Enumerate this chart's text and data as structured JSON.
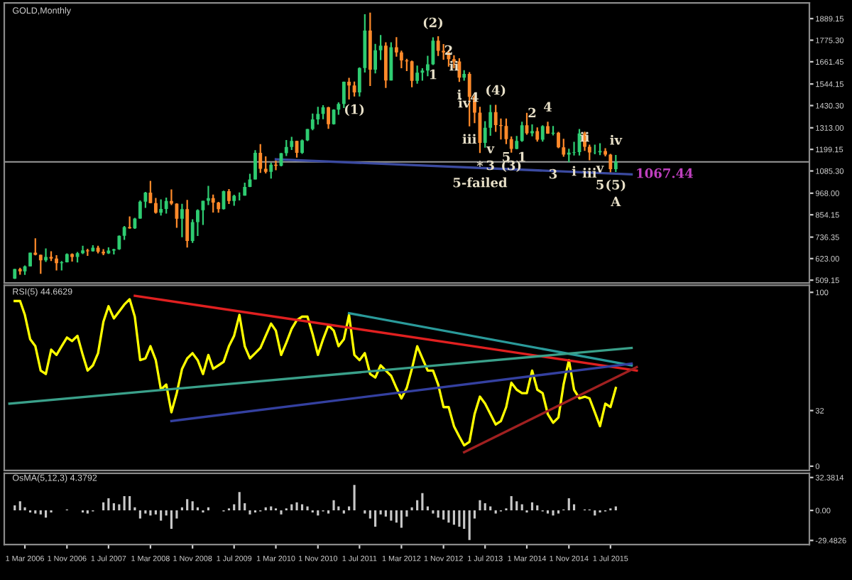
{
  "chart_data": [
    {
      "type": "candlestick",
      "title": "GOLD,Monthly",
      "x": [
        "2006-01",
        "2006-02",
        "2006-03",
        "2006-04",
        "2006-05",
        "2006-06",
        "2006-07",
        "2006-08",
        "2006-09",
        "2006-10",
        "2006-11",
        "2006-12",
        "2007-01",
        "2007-02",
        "2007-03",
        "2007-04",
        "2007-05",
        "2007-06",
        "2007-07",
        "2007-08",
        "2007-09",
        "2007-10",
        "2007-11",
        "2007-12",
        "2008-01",
        "2008-02",
        "2008-03",
        "2008-04",
        "2008-05",
        "2008-06",
        "2008-07",
        "2008-08",
        "2008-09",
        "2008-10",
        "2008-11",
        "2008-12",
        "2009-01",
        "2009-02",
        "2009-03",
        "2009-04",
        "2009-05",
        "2009-06",
        "2009-07",
        "2009-08",
        "2009-09",
        "2009-10",
        "2009-11",
        "2009-12",
        "2010-01",
        "2010-02",
        "2010-03",
        "2010-04",
        "2010-05",
        "2010-06",
        "2010-07",
        "2010-08",
        "2010-09",
        "2010-10",
        "2010-11",
        "2010-12",
        "2011-01",
        "2011-02",
        "2011-03",
        "2011-04",
        "2011-05",
        "2011-06",
        "2011-07",
        "2011-08",
        "2011-09",
        "2011-10",
        "2011-11",
        "2011-12",
        "2012-01",
        "2012-02",
        "2012-03",
        "2012-04",
        "2012-05",
        "2012-06",
        "2012-07",
        "2012-08",
        "2012-09",
        "2012-10",
        "2012-11",
        "2012-12",
        "2013-01",
        "2013-02",
        "2013-03",
        "2013-04",
        "2013-05",
        "2013-06",
        "2013-07",
        "2013-08",
        "2013-09",
        "2013-10",
        "2013-11",
        "2013-12",
        "2014-01",
        "2014-02",
        "2014-03",
        "2014-04",
        "2014-05",
        "2014-06",
        "2014-07",
        "2014-08",
        "2014-09",
        "2014-10",
        "2014-11",
        "2014-12",
        "2015-01",
        "2015-02",
        "2015-03",
        "2015-04",
        "2015-05",
        "2015-06",
        "2015-07",
        "2015-08"
      ],
      "ohlc": [
        [
          517,
          569,
          515,
          568
        ],
        [
          568,
          574,
          538,
          556
        ],
        [
          556,
          587,
          537,
          582
        ],
        [
          582,
          654,
          582,
          654
        ],
        [
          654,
          730,
          640,
          643
        ],
        [
          643,
          644,
          543,
          614
        ],
        [
          614,
          677,
          605,
          632
        ],
        [
          632,
          662,
          610,
          623
        ],
        [
          623,
          641,
          560,
          599
        ],
        [
          599,
          610,
          560,
          604
        ],
        [
          604,
          650,
          603,
          647
        ],
        [
          647,
          650,
          607,
          632
        ],
        [
          632,
          658,
          603,
          651
        ],
        [
          651,
          691,
          647,
          666
        ],
        [
          666,
          675,
          637,
          662
        ],
        [
          662,
          694,
          660,
          680
        ],
        [
          680,
          691,
          650,
          659
        ],
        [
          659,
          673,
          641,
          650
        ],
        [
          650,
          682,
          648,
          665
        ],
        [
          665,
          675,
          645,
          672
        ],
        [
          672,
          745,
          669,
          743
        ],
        [
          743,
          795,
          722,
          789
        ],
        [
          789,
          845,
          781,
          783
        ],
        [
          783,
          838,
          780,
          834
        ],
        [
          834,
          930,
          833,
          923
        ],
        [
          923,
          975,
          890,
          971
        ],
        [
          971,
          1033,
          915,
          916
        ],
        [
          916,
          943,
          860,
          865
        ],
        [
          865,
          935,
          850,
          885
        ],
        [
          885,
          945,
          860,
          927
        ],
        [
          927,
          988,
          905,
          913
        ],
        [
          913,
          915,
          785,
          833
        ],
        [
          833,
          912,
          736,
          884
        ],
        [
          884,
          933,
          681,
          716
        ],
        [
          716,
          830,
          706,
          815
        ],
        [
          815,
          883,
          742,
          878
        ],
        [
          878,
          928,
          800,
          928
        ],
        [
          928,
          1007,
          905,
          942
        ],
        [
          942,
          961,
          866,
          919
        ],
        [
          919,
          922,
          865,
          884
        ],
        [
          884,
          981,
          882,
          979
        ],
        [
          979,
          990,
          911,
          927
        ],
        [
          927,
          960,
          902,
          954
        ],
        [
          954,
          972,
          930,
          955
        ],
        [
          955,
          1024,
          955,
          1001
        ],
        [
          1001,
          1070,
          1000,
          1040
        ],
        [
          1040,
          1195,
          1040,
          1181
        ],
        [
          1181,
          1227,
          1075,
          1097
        ],
        [
          1097,
          1162,
          1072,
          1081
        ],
        [
          1081,
          1129,
          1045,
          1118
        ],
        [
          1118,
          1141,
          1089,
          1113
        ],
        [
          1113,
          1180,
          1110,
          1179
        ],
        [
          1179,
          1249,
          1164,
          1212
        ],
        [
          1212,
          1265,
          1196,
          1244
        ],
        [
          1244,
          1245,
          1156,
          1181
        ],
        [
          1181,
          1251,
          1175,
          1247
        ],
        [
          1247,
          1307,
          1243,
          1307
        ],
        [
          1307,
          1388,
          1300,
          1357
        ],
        [
          1357,
          1424,
          1330,
          1386
        ],
        [
          1386,
          1432,
          1358,
          1421
        ],
        [
          1421,
          1424,
          1308,
          1332
        ],
        [
          1332,
          1411,
          1330,
          1409
        ],
        [
          1409,
          1447,
          1382,
          1439
        ],
        [
          1439,
          1557,
          1417,
          1556
        ],
        [
          1556,
          1577,
          1462,
          1536
        ],
        [
          1536,
          1557,
          1478,
          1500
        ],
        [
          1500,
          1632,
          1478,
          1628
        ],
        [
          1628,
          1912,
          1605,
          1826
        ],
        [
          1826,
          1921,
          1534,
          1620
        ],
        [
          1620,
          1756,
          1600,
          1722
        ],
        [
          1722,
          1803,
          1670,
          1746
        ],
        [
          1746,
          1764,
          1523,
          1563
        ],
        [
          1563,
          1764,
          1563,
          1738
        ],
        [
          1738,
          1791,
          1688,
          1711
        ],
        [
          1711,
          1720,
          1627,
          1669
        ],
        [
          1669,
          1677,
          1612,
          1664
        ],
        [
          1664,
          1668,
          1527,
          1561
        ],
        [
          1561,
          1641,
          1546,
          1604
        ],
        [
          1604,
          1627,
          1562,
          1615
        ],
        [
          1615,
          1693,
          1585,
          1648
        ],
        [
          1648,
          1790,
          1644,
          1773
        ],
        [
          1773,
          1796,
          1692,
          1719
        ],
        [
          1719,
          1755,
          1672,
          1711
        ],
        [
          1711,
          1723,
          1636,
          1675
        ],
        [
          1675,
          1696,
          1626,
          1663
        ],
        [
          1663,
          1680,
          1555,
          1578
        ],
        [
          1578,
          1617,
          1562,
          1597
        ],
        [
          1597,
          1607,
          1321,
          1476
        ],
        [
          1476,
          1487,
          1338,
          1393
        ],
        [
          1393,
          1424,
          1180,
          1234
        ],
        [
          1234,
          1348,
          1208,
          1313
        ],
        [
          1313,
          1434,
          1271,
          1396
        ],
        [
          1396,
          1434,
          1292,
          1327
        ],
        [
          1327,
          1362,
          1251,
          1323
        ],
        [
          1323,
          1362,
          1227,
          1253
        ],
        [
          1253,
          1267,
          1182,
          1202
        ],
        [
          1202,
          1270,
          1200,
          1244
        ],
        [
          1244,
          1345,
          1239,
          1326
        ],
        [
          1326,
          1392,
          1277,
          1284
        ],
        [
          1284,
          1331,
          1268,
          1295
        ],
        [
          1295,
          1315,
          1240,
          1250
        ],
        [
          1250,
          1326,
          1240,
          1322
        ],
        [
          1322,
          1345,
          1281,
          1282
        ],
        [
          1282,
          1323,
          1273,
          1287
        ],
        [
          1287,
          1292,
          1205,
          1210
        ],
        [
          1210,
          1255,
          1160,
          1172
        ],
        [
          1172,
          1203,
          1131,
          1182
        ],
        [
          1182,
          1239,
          1167,
          1185
        ],
        [
          1185,
          1307,
          1167,
          1283
        ],
        [
          1283,
          1293,
          1191,
          1213
        ],
        [
          1213,
          1224,
          1142,
          1183
        ],
        [
          1183,
          1224,
          1174,
          1184
        ],
        [
          1184,
          1232,
          1169,
          1190
        ],
        [
          1190,
          1205,
          1162,
          1172
        ],
        [
          1172,
          1175,
          1077,
          1095
        ],
        [
          1095,
          1170,
          1080,
          1133
        ]
      ],
      "series": [
        {
          "type": "line",
          "x": [
            "2010-03",
            "2015-11"
          ],
          "values": [
            1147,
            1067.44
          ],
          "color": "#3b4aa0"
        }
      ],
      "ref_lines": [
        {
          "axis": "y",
          "value": 1133,
          "color": "#9a9a9a"
        }
      ],
      "xlim": [
        "2005-11",
        "2018-09"
      ],
      "ylim": [
        494,
        1972
      ],
      "yticks": [
        {
          "value": 1889.15,
          "label": "1889.15"
        },
        {
          "value": 1775.3,
          "label": "1775.30"
        },
        {
          "value": 1661.45,
          "label": "1661.45"
        },
        {
          "value": 1544.15,
          "label": "1544.15"
        },
        {
          "value": 1430.3,
          "label": "1430.30"
        },
        {
          "value": 1313,
          "label": "1313.00"
        },
        {
          "value": 1199.15,
          "label": "1199.15"
        },
        {
          "value": 1085.3,
          "label": "1085.30"
        },
        {
          "value": 968,
          "label": "968.00"
        },
        {
          "value": 854.15,
          "label": "854.15"
        },
        {
          "value": 736.35,
          "label": "736.35"
        },
        {
          "value": 623,
          "label": "623.00"
        },
        {
          "value": 509.15,
          "label": "509.15"
        }
      ],
      "tick_labels": "y",
      "annotations": [
        {
          "text": "(1)",
          "x": "2011-06",
          "y": 1478
        },
        {
          "text": "(2)",
          "x": "2012-09",
          "y": 1790
        },
        {
          "text": "5",
          "x": "2013-11",
          "y": 1227
        },
        {
          "text": "(3)",
          "x": "2013-12",
          "y": 1182
        },
        {
          "text": "(4)",
          "x": "2013-09",
          "y": 1434
        },
        {
          "text": "v",
          "x": "2015-05",
          "y": 1169
        },
        {
          "text": "5",
          "x": "2015-05",
          "y": 1169
        },
        {
          "text": "(5)",
          "x": "2015-08",
          "y": 1080
        },
        {
          "text": "A",
          "x": "2015-08",
          "y": 1080
        },
        {
          "text": "*",
          "x": "2013-06",
          "y": 1180
        },
        {
          "text": "5-failed",
          "x": "2013-06",
          "y": 1180
        },
        {
          "text": "2",
          "x": "2012-12",
          "y": 1717
        },
        {
          "text": "1",
          "x": "2012-09",
          "y": 1589
        },
        {
          "text": "ii",
          "x": "2013-01",
          "y": 1634
        },
        {
          "text": "i",
          "x": "2013-02",
          "y": 1555
        },
        {
          "text": "iv",
          "x": "2013-03",
          "y": 1439
        },
        {
          "text": "4",
          "x": "2013-05",
          "y": 1469
        },
        {
          "text": "iii",
          "x": "2013-04",
          "y": 1321
        },
        {
          "text": "v",
          "x": "2013-08",
          "y": 1271
        },
        {
          "text": "3",
          "x": "2013-08",
          "y": 1271
        },
        {
          "text": "1",
          "x": "2014-02",
          "y": 1154
        },
        {
          "text": "2",
          "x": "2014-04",
          "y": 1387
        },
        {
          "text": "3",
          "x": "2014-08",
          "y": 1064
        },
        {
          "text": "4",
          "x": "2014-07",
          "y": 1345
        },
        {
          "text": "i",
          "x": "2014-12",
          "y": 1079
        },
        {
          "text": "ii",
          "x": "2015-02",
          "y": 1259
        },
        {
          "text": "iii",
          "x": "2015-03",
          "y": 1142
        },
        {
          "text": "iv",
          "x": "2015-08",
          "y": 1170
        },
        {
          "text": "1067.44",
          "x": "2015-11",
          "y": 1067.44
        }
      ]
    },
    {
      "type": "line",
      "title": "RSI(5) 44.6629",
      "x": [
        "2006-01",
        "2006-02",
        "2006-03",
        "2006-04",
        "2006-05",
        "2006-06",
        "2006-07",
        "2006-08",
        "2006-09",
        "2006-10",
        "2006-11",
        "2006-12",
        "2007-01",
        "2007-02",
        "2007-03",
        "2007-04",
        "2007-05",
        "2007-06",
        "2007-07",
        "2007-08",
        "2007-09",
        "2007-10",
        "2007-11",
        "2007-12",
        "2008-01",
        "2008-02",
        "2008-03",
        "2008-04",
        "2008-05",
        "2008-06",
        "2008-07",
        "2008-08",
        "2008-09",
        "2008-10",
        "2008-11",
        "2008-12",
        "2009-01",
        "2009-02",
        "2009-03",
        "2009-04",
        "2009-05",
        "2009-06",
        "2009-07",
        "2009-08",
        "2009-09",
        "2009-10",
        "2009-11",
        "2009-12",
        "2010-01",
        "2010-02",
        "2010-03",
        "2010-04",
        "2010-05",
        "2010-06",
        "2010-07",
        "2010-08",
        "2010-09",
        "2010-10",
        "2010-11",
        "2010-12",
        "2011-01",
        "2011-02",
        "2011-03",
        "2011-04",
        "2011-05",
        "2011-06",
        "2011-07",
        "2011-08",
        "2011-09",
        "2011-10",
        "2011-11",
        "2011-12",
        "2012-01",
        "2012-02",
        "2012-03",
        "2012-04",
        "2012-05",
        "2012-06",
        "2012-07",
        "2012-08",
        "2012-09",
        "2012-10",
        "2012-11",
        "2012-12",
        "2013-01",
        "2013-02",
        "2013-03",
        "2013-04",
        "2013-05",
        "2013-06",
        "2013-07",
        "2013-08",
        "2013-09",
        "2013-10",
        "2013-11",
        "2013-12",
        "2014-01",
        "2014-02",
        "2014-03",
        "2014-04",
        "2014-05",
        "2014-06",
        "2014-07",
        "2014-08",
        "2014-09",
        "2014-10",
        "2014-11",
        "2014-12",
        "2015-01",
        "2015-02",
        "2015-03",
        "2015-04",
        "2015-05",
        "2015-06",
        "2015-07",
        "2015-08"
      ],
      "series": [
        {
          "color": "#ffff00",
          "values": [
            95,
            95,
            87,
            73,
            69,
            55,
            53,
            67,
            64,
            69,
            74,
            72,
            75,
            64,
            55,
            58,
            65,
            83,
            92,
            85,
            89,
            93,
            96,
            86,
            61,
            62,
            69,
            61,
            44,
            47,
            31,
            42,
            56,
            62,
            65,
            61,
            53,
            64,
            56,
            58,
            60,
            69,
            75,
            87,
            69,
            62,
            65,
            68,
            75,
            82,
            78,
            64,
            71,
            79,
            84,
            86,
            86,
            76,
            64,
            73,
            81,
            78,
            69,
            73,
            87,
            64,
            61,
            65,
            53,
            51,
            58,
            55,
            52,
            45,
            39,
            45,
            56,
            69,
            62,
            55,
            55,
            47,
            34,
            34,
            23,
            17,
            12,
            14,
            30,
            40,
            36,
            30,
            24,
            26,
            34,
            48,
            44,
            42,
            42,
            55,
            44,
            42,
            30,
            25,
            28,
            47,
            61,
            44,
            39,
            40,
            39,
            31,
            23,
            36,
            34,
            45
          ]
        },
        {
          "x": [
            "2007-12",
            "2015-12"
          ],
          "values": [
            98,
            55
          ],
          "color": "#e02020"
        },
        {
          "x": [
            "2011-05",
            "2015-11"
          ],
          "values": [
            88,
            58
          ],
          "color": "#2a9a9a"
        },
        {
          "x": [
            "2005-12",
            "2015-11"
          ],
          "values": [
            36,
            68
          ],
          "color": "#3aa08a"
        },
        {
          "x": [
            "2008-07",
            "2015-11"
          ],
          "values": [
            26,
            59
          ],
          "color": "#3440a0"
        },
        {
          "x": [
            "2013-03",
            "2015-12"
          ],
          "values": [
            8,
            57
          ],
          "color": "#a02020"
        }
      ],
      "xlim": [
        "2005-11",
        "2018-09"
      ],
      "ylim": [
        -2.4,
        104
      ],
      "yticks": [
        100,
        32,
        0
      ],
      "tick_labels": "y"
    },
    {
      "type": "bar",
      "title": "OsMA(5,12,3) 4.3792",
      "color": "#c8c8c8",
      "x": [
        "2006-01",
        "2006-02",
        "2006-03",
        "2006-04",
        "2006-05",
        "2006-06",
        "2006-07",
        "2006-08",
        "2006-09",
        "2006-10",
        "2006-11",
        "2006-12",
        "2007-01",
        "2007-02",
        "2007-03",
        "2007-04",
        "2007-05",
        "2007-06",
        "2007-07",
        "2007-08",
        "2007-09",
        "2007-10",
        "2007-11",
        "2007-12",
        "2008-01",
        "2008-02",
        "2008-03",
        "2008-04",
        "2008-05",
        "2008-06",
        "2008-07",
        "2008-08",
        "2008-09",
        "2008-10",
        "2008-11",
        "2008-12",
        "2009-01",
        "2009-02",
        "2009-03",
        "2009-04",
        "2009-05",
        "2009-06",
        "2009-07",
        "2009-08",
        "2009-09",
        "2009-10",
        "2009-11",
        "2009-12",
        "2010-01",
        "2010-02",
        "2010-03",
        "2010-04",
        "2010-05",
        "2010-06",
        "2010-07",
        "2010-08",
        "2010-09",
        "2010-10",
        "2010-11",
        "2010-12",
        "2011-01",
        "2011-02",
        "2011-03",
        "2011-04",
        "2011-05",
        "2011-06",
        "2011-07",
        "2011-08",
        "2011-09",
        "2011-10",
        "2011-11",
        "2011-12",
        "2012-01",
        "2012-02",
        "2012-03",
        "2012-04",
        "2012-05",
        "2012-06",
        "2012-07",
        "2012-08",
        "2012-09",
        "2012-10",
        "2012-11",
        "2012-12",
        "2013-01",
        "2013-02",
        "2013-03",
        "2013-04",
        "2013-05",
        "2013-06",
        "2013-07",
        "2013-08",
        "2013-09",
        "2013-10",
        "2013-11",
        "2013-12",
        "2014-01",
        "2014-02",
        "2014-03",
        "2014-04",
        "2014-05",
        "2014-06",
        "2014-07",
        "2014-08",
        "2014-09",
        "2014-10",
        "2014-11",
        "2014-12",
        "2015-01",
        "2015-02",
        "2015-03",
        "2015-04",
        "2015-05",
        "2015-06",
        "2015-07",
        "2015-08"
      ],
      "values": [
        5,
        9,
        3,
        -2,
        -3,
        -4,
        -7,
        -2,
        0,
        0,
        1,
        0,
        0,
        -2,
        -3,
        -1,
        0,
        8,
        12,
        7,
        6,
        14,
        14,
        3,
        -8,
        -3,
        -5,
        -4,
        -10,
        -5,
        -18,
        -8,
        3,
        11,
        9,
        3,
        -2,
        3,
        0,
        0,
        -1,
        2,
        6,
        18,
        7,
        -4,
        -2,
        -1,
        3,
        4,
        2,
        -4,
        2,
        6,
        8,
        6,
        4,
        -2,
        -5,
        -1,
        -3,
        10,
        4,
        -3,
        4,
        25,
        0,
        -3,
        -8,
        -16,
        -4,
        -6,
        -10,
        -12,
        -17,
        -6,
        3,
        10,
        17,
        4,
        -3,
        -7,
        -9,
        -12,
        -14,
        -16,
        -18,
        -29,
        -8,
        10,
        7,
        4,
        -3,
        -1,
        2,
        14,
        9,
        6,
        -2,
        8,
        5,
        -1,
        -3,
        -5,
        -3,
        1,
        12,
        6,
        0,
        1,
        1,
        -5,
        -2,
        -1,
        2,
        4
      ],
      "xlim": [
        "2005-11",
        "2018-09"
      ],
      "ylim": [
        -33.6,
        36.5
      ],
      "yticks": [
        {
          "value": 32.3814,
          "label": "32.3814"
        },
        {
          "value": 0,
          "label": "0.00"
        },
        {
          "value": -29.4826,
          "label": "-29.4826"
        }
      ],
      "xticks": [
        {
          "value": "2006-03",
          "label": "1 Mar 2006"
        },
        {
          "value": "2006-11",
          "label": "1 Nov 2006"
        },
        {
          "value": "2007-07",
          "label": "1 Jul 2007"
        },
        {
          "value": "2008-03",
          "label": "1 Mar 2008"
        },
        {
          "value": "2008-11",
          "label": "1 Nov 2008"
        },
        {
          "value": "2009-07",
          "label": "1 Jul 2009"
        },
        {
          "value": "2010-03",
          "label": "1 Mar 2010"
        },
        {
          "value": "2010-11",
          "label": "1 Nov 2010"
        },
        {
          "value": "2011-07",
          "label": "1 Jul 2011"
        },
        {
          "value": "2012-03",
          "label": "1 Mar 2012"
        },
        {
          "value": "2012-11",
          "label": "1 Nov 2012"
        },
        {
          "value": "2013-07",
          "label": "1 Jul 2013"
        },
        {
          "value": "2014-03",
          "label": "1 Mar 2014"
        },
        {
          "value": "2014-11",
          "label": "1 Nov 2014"
        },
        {
          "value": "2015-07",
          "label": "1 Jul 2015"
        }
      ]
    }
  ]
}
